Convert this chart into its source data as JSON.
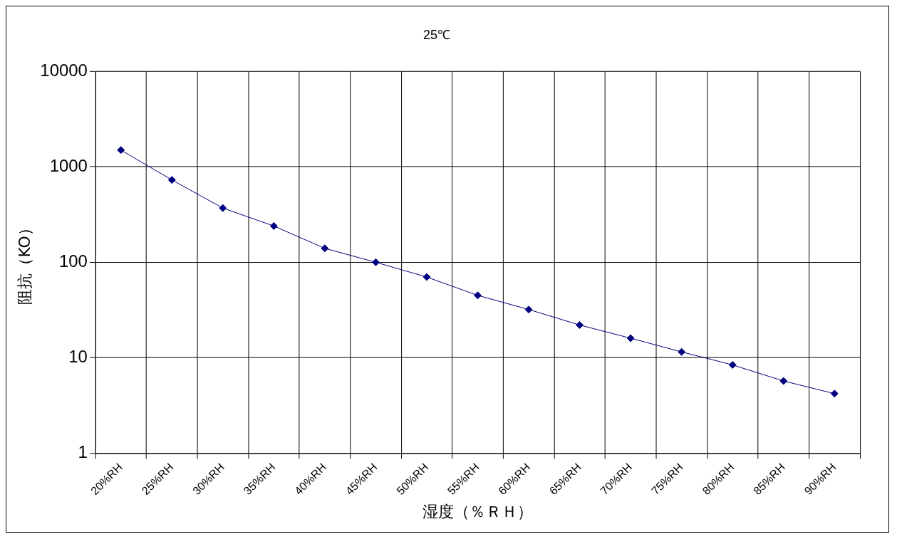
{
  "chart_data": {
    "type": "line",
    "title": "25℃",
    "xlabel": "湿度（％ＲＨ）",
    "ylabel": "阻抗（KO）",
    "categories": [
      "20%RH",
      "25%RH",
      "30%RH",
      "35%RH",
      "40%RH",
      "45%RH",
      "50%RH",
      "55%RH",
      "60%RH",
      "65%RH",
      "70%RH",
      "75%RH",
      "80%RH",
      "85%RH",
      "90%RH"
    ],
    "series": [
      {
        "color": "#000080",
        "values": [
          1500,
          730,
          370,
          240,
          140,
          100,
          70,
          45,
          32,
          22,
          16,
          11.5,
          8.4,
          5.7,
          4.2
        ]
      }
    ],
    "log": "y",
    "ylim": [
      1,
      10000
    ],
    "yticks": [
      1,
      10,
      100,
      1000,
      10000
    ],
    "grid": true,
    "legend": false,
    "marker": "diamond",
    "line_style": "solid"
  }
}
